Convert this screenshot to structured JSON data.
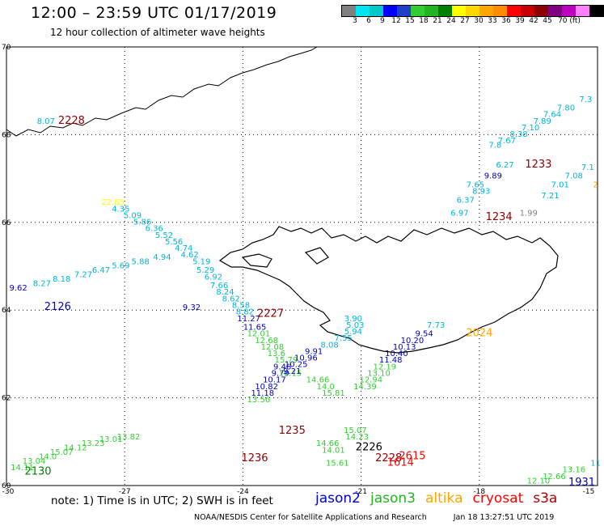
{
  "header": {
    "title": "12:00 – 23:59 UTC 01/17/2019",
    "subtitle": "12 hour collection of altimeter wave heights"
  },
  "colorbar": {
    "colors": [
      "#808080",
      "#00e5ee",
      "#00c8c8",
      "#0000ff",
      "#1e40c8",
      "#32cd32",
      "#22b422",
      "#008000",
      "#ffff00",
      "#ffd700",
      "#ffa500",
      "#ff8c00",
      "#ff0000",
      "#c80000",
      "#8b0000",
      "#800080",
      "#c000c0",
      "#ff80ff",
      "#000000"
    ],
    "labels": [
      "3",
      "6",
      "9",
      "12",
      "15",
      "18",
      "21",
      "24",
      "27",
      "30",
      "33",
      "36",
      "39",
      "42",
      "45",
      "70 (ft)"
    ]
  },
  "axes": {
    "lat_labels": [
      "70",
      "68",
      "66",
      "64",
      "62",
      "60"
    ],
    "lon_labels": [
      "-30",
      "-27",
      "-24",
      "-21",
      "-18",
      "-15"
    ]
  },
  "chart_data": {
    "type": "scatter",
    "xlabel": "",
    "ylabel": "",
    "xlim": [
      -30,
      -15
    ],
    "ylim": [
      60,
      70
    ],
    "passes": [
      {
        "time": "2228",
        "color": "#8b0000",
        "lon": -28.35,
        "lat": 68.25
      },
      {
        "time": "2126",
        "color": "#0000c0",
        "lon": -28.7,
        "lat": 64.0
      },
      {
        "time": "2227",
        "color": "#8b0000",
        "lon": -23.3,
        "lat": 63.85
      },
      {
        "time": "2024",
        "color": "#ffa500",
        "lon": -18.0,
        "lat": 63.4
      },
      {
        "time": "1233",
        "color": "#8b0000",
        "lon": -16.5,
        "lat": 67.25
      },
      {
        "time": "1234",
        "color": "#8b0000",
        "lon": -17.5,
        "lat": 66.05
      },
      {
        "time": "1235",
        "color": "#8b0000",
        "lon": -22.75,
        "lat": 61.18
      },
      {
        "time": "1236",
        "color": "#8b0000",
        "lon": -23.7,
        "lat": 60.55
      },
      {
        "time": "2226",
        "color": "#000000",
        "lon": -20.8,
        "lat": 60.8
      },
      {
        "time": "2228",
        "color": "#8b0000",
        "lon": -20.3,
        "lat": 60.55
      },
      {
        "time": "2615",
        "color": "#ff0000",
        "lon": -19.7,
        "lat": 60.6
      },
      {
        "time": "1614",
        "color": "#ff0000",
        "lon": -20.0,
        "lat": 60.45
      },
      {
        "time": "2130",
        "color": "#008000",
        "lon": -29.2,
        "lat": 60.25
      },
      {
        "time": "1931",
        "color": "#0000c0",
        "lon": -15.4,
        "lat": 60.0
      }
    ],
    "points": [
      {
        "v": "8.07",
        "c": "#00b4d8",
        "lon": -29.0,
        "lat": 68.25
      },
      {
        "v": "7.3",
        "c": "#00b4d8",
        "lon": -15.3,
        "lat": 68.75
      },
      {
        "v": "7.80",
        "c": "#00b4d8",
        "lon": -15.8,
        "lat": 68.55
      },
      {
        "v": "7.64",
        "c": "#00b4d8",
        "lon": -16.15,
        "lat": 68.4
      },
      {
        "v": "7.89",
        "c": "#00b4d8",
        "lon": -16.4,
        "lat": 68.25
      },
      {
        "v": "7.10",
        "c": "#00b4d8",
        "lon": -16.7,
        "lat": 68.1
      },
      {
        "v": "8.38",
        "c": "#00b4d8",
        "lon": -17.0,
        "lat": 67.95
      },
      {
        "v": "7.67",
        "c": "#00b4d8",
        "lon": -17.3,
        "lat": 67.8
      },
      {
        "v": "7.8",
        "c": "#00b4d8",
        "lon": -17.6,
        "lat": 67.7
      },
      {
        "v": "6.27",
        "c": "#00b4d8",
        "lon": -17.35,
        "lat": 67.25
      },
      {
        "v": "9.89",
        "c": "#0000c0",
        "lon": -17.65,
        "lat": 67.0
      },
      {
        "v": "7.65",
        "c": "#00b4d8",
        "lon": -18.1,
        "lat": 66.8
      },
      {
        "v": "8.93",
        "c": "#00b4d8",
        "lon": -17.95,
        "lat": 66.65
      },
      {
        "v": "6.37",
        "c": "#00b4d8",
        "lon": -18.35,
        "lat": 66.45
      },
      {
        "v": "6.97",
        "c": "#00b4d8",
        "lon": -18.5,
        "lat": 66.15
      },
      {
        "v": "1.99",
        "c": "#808080",
        "lon": -16.75,
        "lat": 66.15
      },
      {
        "v": "7.1",
        "c": "#00b4d8",
        "lon": -15.25,
        "lat": 67.2
      },
      {
        "v": "7.08",
        "c": "#00b4d8",
        "lon": -15.6,
        "lat": 67.0
      },
      {
        "v": "7.01",
        "c": "#00b4d8",
        "lon": -15.95,
        "lat": 66.8
      },
      {
        "v": "7.21",
        "c": "#00b4d8",
        "lon": -16.2,
        "lat": 66.55
      },
      {
        "v": "2",
        "c": "#ffa500",
        "lon": -15.05,
        "lat": 66.8
      },
      {
        "v": "22.85",
        "c": "#ffff00",
        "lon": -27.3,
        "lat": 66.4
      },
      {
        "v": "4.35",
        "c": "#00b4d8",
        "lon": -27.1,
        "lat": 66.25
      },
      {
        "v": "5.09",
        "c": "#00b4d8",
        "lon": -26.8,
        "lat": 66.1
      },
      {
        "v": "5.86",
        "c": "#00b4d8",
        "lon": -26.55,
        "lat": 65.95
      },
      {
        "v": "6.36",
        "c": "#00b4d8",
        "lon": -26.25,
        "lat": 65.8
      },
      {
        "v": "5.52",
        "c": "#00b4d8",
        "lon": -26.0,
        "lat": 65.65
      },
      {
        "v": "5.56",
        "c": "#00b4d8",
        "lon": -25.75,
        "lat": 65.5
      },
      {
        "v": "4.74",
        "c": "#00b4d8",
        "lon": -25.5,
        "lat": 65.35
      },
      {
        "v": "4.62",
        "c": "#00b4d8",
        "lon": -25.35,
        "lat": 65.2
      },
      {
        "v": "5.19",
        "c": "#00b4d8",
        "lon": -25.05,
        "lat": 65.05
      },
      {
        "v": "5.29",
        "c": "#00b4d8",
        "lon": -24.95,
        "lat": 64.85
      },
      {
        "v": "6.92",
        "c": "#00b4d8",
        "lon": -24.75,
        "lat": 64.7
      },
      {
        "v": "7.66",
        "c": "#00b4d8",
        "lon": -24.6,
        "lat": 64.5
      },
      {
        "v": "8.24",
        "c": "#00b4d8",
        "lon": -24.45,
        "lat": 64.35
      },
      {
        "v": "8.62",
        "c": "#00b4d8",
        "lon": -24.3,
        "lat": 64.2
      },
      {
        "v": "8.58",
        "c": "#00b4d8",
        "lon": -24.05,
        "lat": 64.05
      },
      {
        "v": "8.82",
        "c": "#00b4d8",
        "lon": -23.95,
        "lat": 63.9
      },
      {
        "v": "11.27",
        "c": "#0000c0",
        "lon": -23.85,
        "lat": 63.75
      },
      {
        "v": "11.65",
        "c": "#0000c0",
        "lon": -23.7,
        "lat": 63.55
      },
      {
        "v": "12.01",
        "c": "#32cd32",
        "lon": -23.6,
        "lat": 63.4
      },
      {
        "v": "12.68",
        "c": "#32cd32",
        "lon": -23.4,
        "lat": 63.25
      },
      {
        "v": "12.08",
        "c": "#32cd32",
        "lon": -23.25,
        "lat": 63.1
      },
      {
        "v": "13.6",
        "c": "#32cd32",
        "lon": -23.15,
        "lat": 62.95
      },
      {
        "v": "15.79",
        "c": "#32cd32",
        "lon": -22.9,
        "lat": 62.8
      },
      {
        "v": "9.46",
        "c": "#0000c0",
        "lon": -23.0,
        "lat": 62.65
      },
      {
        "v": "9.79",
        "c": "#0000c0",
        "lon": -23.05,
        "lat": 62.5
      },
      {
        "v": "10.17",
        "c": "#0000c0",
        "lon": -23.2,
        "lat": 62.35
      },
      {
        "v": "10.82",
        "c": "#0000c0",
        "lon": -23.4,
        "lat": 62.2
      },
      {
        "v": "11.18",
        "c": "#0000c0",
        "lon": -23.5,
        "lat": 62.05
      },
      {
        "v": "13.56",
        "c": "#32cd32",
        "lon": -23.6,
        "lat": 61.9
      },
      {
        "v": "14.15",
        "c": "#32cd32",
        "lon": -22.8,
        "lat": 62.5
      },
      {
        "v": "14.66",
        "c": "#32cd32",
        "lon": -22.1,
        "lat": 62.35
      },
      {
        "v": "14.0",
        "c": "#32cd32",
        "lon": -21.9,
        "lat": 62.2
      },
      {
        "v": "15.81",
        "c": "#32cd32",
        "lon": -21.7,
        "lat": 62.05
      },
      {
        "v": "9.32",
        "c": "#0000c0",
        "lon": -25.3,
        "lat": 64.0
      },
      {
        "v": "9.62",
        "c": "#0000c0",
        "lon": -29.7,
        "lat": 64.45
      },
      {
        "v": "8.27",
        "c": "#00b4d8",
        "lon": -29.1,
        "lat": 64.55
      },
      {
        "v": "8.18",
        "c": "#00b4d8",
        "lon": -28.6,
        "lat": 64.65
      },
      {
        "v": "7.27",
        "c": "#00b4d8",
        "lon": -28.05,
        "lat": 64.75
      },
      {
        "v": "6.47",
        "c": "#00b4d8",
        "lon": -27.6,
        "lat": 64.85
      },
      {
        "v": "5.69",
        "c": "#00b4d8",
        "lon": -27.1,
        "lat": 64.95
      },
      {
        "v": "5.88",
        "c": "#00b4d8",
        "lon": -26.6,
        "lat": 65.05
      },
      {
        "v": "4.94",
        "c": "#00b4d8",
        "lon": -26.05,
        "lat": 65.15
      },
      {
        "v": "3.90",
        "c": "#00b4d8",
        "lon": -21.2,
        "lat": 63.75
      },
      {
        "v": "5.03",
        "c": "#00b4d8",
        "lon": -21.15,
        "lat": 63.6
      },
      {
        "v": "5.94",
        "c": "#00b4d8",
        "lon": -21.2,
        "lat": 63.45
      },
      {
        "v": "7.55",
        "c": "#00b4d8",
        "lon": -21.45,
        "lat": 63.3
      },
      {
        "v": "8.08",
        "c": "#00b4d8",
        "lon": -21.8,
        "lat": 63.15
      },
      {
        "v": "9.91",
        "c": "#0000c0",
        "lon": -22.2,
        "lat": 63.0
      },
      {
        "v": "10.96",
        "c": "#0000c0",
        "lon": -22.4,
        "lat": 62.85
      },
      {
        "v": "10.25",
        "c": "#0000c0",
        "lon": -22.65,
        "lat": 62.7
      },
      {
        "v": "9.21",
        "c": "#0000c0",
        "lon": -22.75,
        "lat": 62.55
      },
      {
        "v": "7.73",
        "c": "#00b4d8",
        "lon": -19.1,
        "lat": 63.6
      },
      {
        "v": "9.54",
        "c": "#0000c0",
        "lon": -19.4,
        "lat": 63.4
      },
      {
        "v": "10.20",
        "c": "#0000c0",
        "lon": -19.7,
        "lat": 63.25
      },
      {
        "v": "10.13",
        "c": "#0000c0",
        "lon": -19.9,
        "lat": 63.1
      },
      {
        "v": "10.40",
        "c": "#0000c0",
        "lon": -20.1,
        "lat": 62.95
      },
      {
        "v": "11.48",
        "c": "#0000c0",
        "lon": -20.25,
        "lat": 62.8
      },
      {
        "v": "12.19",
        "c": "#32cd32",
        "lon": -20.4,
        "lat": 62.65
      },
      {
        "v": "13.10",
        "c": "#32cd32",
        "lon": -20.55,
        "lat": 62.5
      },
      {
        "v": "12.94",
        "c": "#32cd32",
        "lon": -20.75,
        "lat": 62.35
      },
      {
        "v": "14.39",
        "c": "#32cd32",
        "lon": -20.9,
        "lat": 62.2
      },
      {
        "v": "15.07",
        "c": "#32cd32",
        "lon": -21.15,
        "lat": 61.2
      },
      {
        "v": "14.23",
        "c": "#32cd32",
        "lon": -21.1,
        "lat": 61.05
      },
      {
        "v": "14.66",
        "c": "#32cd32",
        "lon": -21.85,
        "lat": 60.9
      },
      {
        "v": "14.01",
        "c": "#32cd32",
        "lon": -21.7,
        "lat": 60.75
      },
      {
        "v": "15.61",
        "c": "#32cd32",
        "lon": -21.6,
        "lat": 60.45
      },
      {
        "v": "14.11",
        "c": "#32cd32",
        "lon": -29.6,
        "lat": 60.35
      },
      {
        "v": "13.04",
        "c": "#32cd32",
        "lon": -29.3,
        "lat": 60.5
      },
      {
        "v": "14.0",
        "c": "#32cd32",
        "lon": -28.95,
        "lat": 60.6
      },
      {
        "v": "15.07",
        "c": "#32cd32",
        "lon": -28.6,
        "lat": 60.7
      },
      {
        "v": "14.12",
        "c": "#32cd32",
        "lon": -28.25,
        "lat": 60.8
      },
      {
        "v": "13.23",
        "c": "#32cd32",
        "lon": -27.8,
        "lat": 60.9
      },
      {
        "v": "13.01",
        "c": "#32cd32",
        "lon": -27.35,
        "lat": 61.0
      },
      {
        "v": "13.82",
        "c": "#32cd32",
        "lon": -26.9,
        "lat": 61.05
      },
      {
        "v": "12.10",
        "c": "#32cd32",
        "lon": -16.5,
        "lat": 60.05
      },
      {
        "v": "12.66",
        "c": "#32cd32",
        "lon": -16.1,
        "lat": 60.15
      },
      {
        "v": "13.16",
        "c": "#32cd32",
        "lon": -15.6,
        "lat": 60.3
      },
      {
        "v": "11",
        "c": "#00b4d8",
        "lon": -15.05,
        "lat": 60.45
      }
    ]
  },
  "footer": {
    "note": "note:  1) Time is in UTC;  2) SWH is in feet",
    "satellites": [
      {
        "name": "jason2",
        "color": "#0000e0"
      },
      {
        "name": "jason3",
        "color": "#22b422"
      },
      {
        "name": "altika",
        "color": "#ffa500"
      },
      {
        "name": "cryosat",
        "color": "#ff0000"
      },
      {
        "name": "s3a",
        "color": "#b00000"
      }
    ],
    "credit_org": "NOAA/NESDIS Center for Satellite Applications and Research",
    "credit_time": "Jan 18 13:27:51 UTC 2019"
  }
}
